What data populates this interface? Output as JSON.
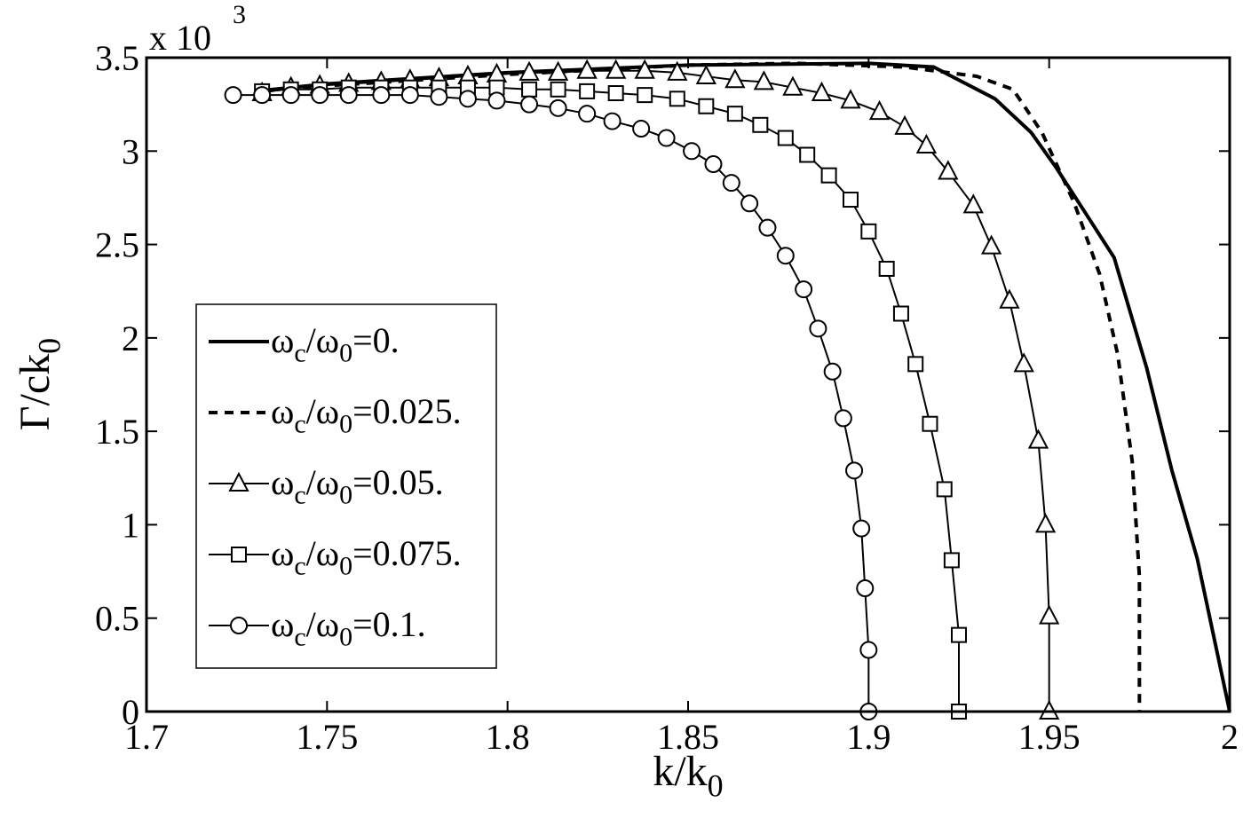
{
  "chart_data": {
    "type": "line",
    "x_label": "k/k0",
    "y_label": "Γ/ck0",
    "y_multiplier": "x 10",
    "y_exponent": "3",
    "xlim": [
      1.7,
      2
    ],
    "ylim": [
      0,
      3.5
    ],
    "xticks": [
      1.7,
      1.75,
      1.8,
      1.85,
      1.9,
      1.95,
      2
    ],
    "yticks": [
      0,
      0.5,
      1,
      1.5,
      2,
      2.5,
      3,
      3.5
    ],
    "grid": false,
    "legend": "lower left",
    "series": [
      {
        "name": "ωc/ω0=0.",
        "color": "#000000",
        "linestyle": "solid",
        "marker": "none",
        "linewidth": 4,
        "x": [
          1.73,
          1.75,
          1.8,
          1.85,
          1.9,
          1.918,
          1.925,
          1.935,
          1.945,
          1.952,
          1.961,
          1.968,
          1.977,
          1.984,
          1.991,
          2.0
        ],
        "values": [
          3.32,
          3.36,
          3.42,
          3.46,
          3.47,
          3.45,
          3.38,
          3.28,
          3.1,
          2.91,
          2.64,
          2.43,
          1.84,
          1.29,
          0.82,
          0
        ]
      },
      {
        "name": "ωc/ω0=0.025.",
        "color": "#000000",
        "linestyle": "dashed",
        "marker": "none",
        "linewidth": 4,
        "x": [
          1.73,
          1.75,
          1.8,
          1.85,
          1.88,
          1.91,
          1.93,
          1.94,
          1.948,
          1.957,
          1.964,
          1.969,
          1.973,
          1.975,
          1.975
        ],
        "values": [
          3.32,
          3.35,
          3.41,
          3.46,
          3.47,
          3.45,
          3.4,
          3.33,
          3.1,
          2.72,
          2.34,
          1.91,
          1.34,
          0.72,
          0
        ]
      },
      {
        "name": "ωc/ω0=0.05.",
        "color": "#000000",
        "linestyle": "solid",
        "marker": "triangle",
        "linewidth": 2,
        "x": [
          1.732,
          1.74,
          1.748,
          1.756,
          1.765,
          1.773,
          1.781,
          1.789,
          1.797,
          1.806,
          1.814,
          1.822,
          1.83,
          1.838,
          1.847,
          1.855,
          1.863,
          1.871,
          1.879,
          1.887,
          1.895,
          1.903,
          1.91,
          1.916,
          1.922,
          1.929,
          1.934,
          1.939,
          1.943,
          1.947,
          1.949,
          1.95,
          1.95
        ],
        "values": [
          3.31,
          3.34,
          3.35,
          3.36,
          3.37,
          3.38,
          3.39,
          3.4,
          3.41,
          3.42,
          3.42,
          3.43,
          3.43,
          3.43,
          3.42,
          3.4,
          3.38,
          3.37,
          3.34,
          3.31,
          3.27,
          3.21,
          3.13,
          3.03,
          2.89,
          2.71,
          2.49,
          2.2,
          1.86,
          1.45,
          1.0,
          0.51,
          0
        ]
      },
      {
        "name": "ωc/ω0=0.075.",
        "color": "#000000",
        "linestyle": "solid",
        "marker": "square",
        "linewidth": 2,
        "x": [
          1.732,
          1.74,
          1.748,
          1.756,
          1.765,
          1.773,
          1.781,
          1.789,
          1.797,
          1.806,
          1.814,
          1.822,
          1.83,
          1.838,
          1.847,
          1.855,
          1.863,
          1.87,
          1.877,
          1.883,
          1.889,
          1.895,
          1.9,
          1.905,
          1.909,
          1.913,
          1.917,
          1.921,
          1.923,
          1.925,
          1.925
        ],
        "values": [
          3.32,
          3.33,
          3.33,
          3.34,
          3.34,
          3.34,
          3.34,
          3.34,
          3.34,
          3.33,
          3.33,
          3.32,
          3.31,
          3.3,
          3.28,
          3.24,
          3.2,
          3.14,
          3.07,
          2.98,
          2.87,
          2.74,
          2.57,
          2.37,
          2.13,
          1.86,
          1.54,
          1.19,
          0.81,
          0.41,
          0
        ]
      },
      {
        "name": "ωc/ω0=0.1.",
        "color": "#000000",
        "linestyle": "solid",
        "marker": "circle",
        "linewidth": 2,
        "x": [
          1.724,
          1.732,
          1.74,
          1.748,
          1.756,
          1.765,
          1.773,
          1.781,
          1.789,
          1.797,
          1.806,
          1.814,
          1.822,
          1.829,
          1.837,
          1.844,
          1.851,
          1.857,
          1.862,
          1.867,
          1.872,
          1.877,
          1.882,
          1.886,
          1.89,
          1.893,
          1.896,
          1.898,
          1.899,
          1.9,
          1.9
        ],
        "values": [
          3.3,
          3.3,
          3.3,
          3.3,
          3.3,
          3.3,
          3.3,
          3.29,
          3.28,
          3.27,
          3.25,
          3.23,
          3.2,
          3.16,
          3.12,
          3.07,
          3.0,
          2.93,
          2.83,
          2.72,
          2.59,
          2.44,
          2.26,
          2.05,
          1.82,
          1.57,
          1.29,
          0.98,
          0.66,
          0.33,
          0
        ]
      }
    ]
  }
}
